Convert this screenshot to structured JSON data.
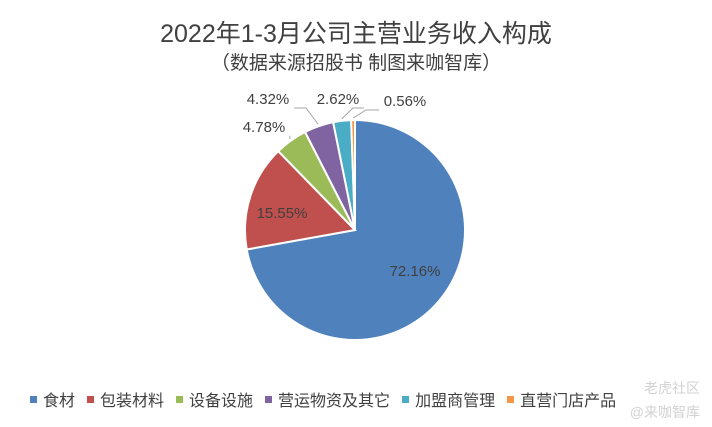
{
  "chart_data": {
    "type": "pie",
    "title": "2022年1-3月公司主营业务收入构成",
    "subtitle": "（数据来源招股书 制图来咖智库）",
    "categories": [
      "食材",
      "包装材料",
      "设备设施",
      "营运物资及其它",
      "加盟商管理",
      "直营门店产品"
    ],
    "values": [
      72.16,
      15.55,
      4.78,
      4.32,
      2.62,
      0.56
    ],
    "labels": [
      "72.16%",
      "15.55%",
      "4.78%",
      "4.32%",
      "2.62%",
      "0.56%"
    ],
    "colors": [
      "#4f81bd",
      "#c0504d",
      "#9bbb59",
      "#8064a2",
      "#4bacc6",
      "#f79646"
    ],
    "legend_position": "bottom"
  },
  "watermark": {
    "line1": "老虎社区",
    "line2": "@来咖智库"
  }
}
